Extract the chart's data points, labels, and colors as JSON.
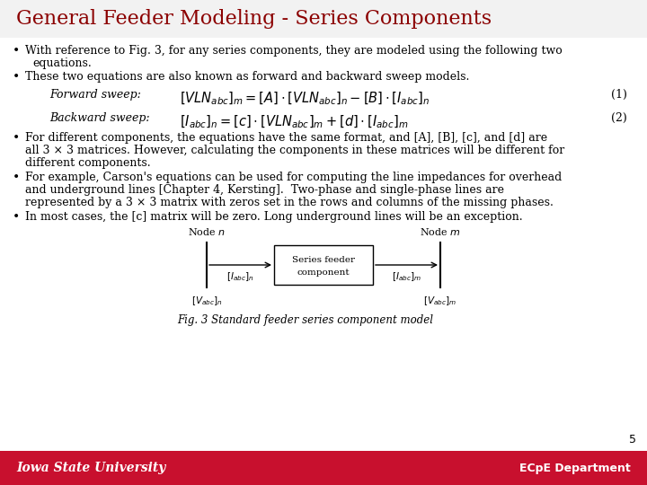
{
  "title": "General Feeder Modeling - Series Components",
  "title_color": "#8B0000",
  "title_fontsize": 16,
  "bg_color": "#FFFFFF",
  "footer_color": "#C8102E",
  "footer_text_left": "Iowa State University",
  "footer_text_right": "ECpE Department",
  "footer_page": "5",
  "bullet1": "With reference to Fig. 3, for any series components, they are modeled using the following two\n   equations.",
  "bullet2": "These two equations are also known as forward and backward sweep models.",
  "forward_label": "Forward sweep:",
  "forward_eq": "$[VLN_{abc}]_m=[A]\\cdot[VLN_{abc}]_n-[B]\\cdot[I_{abc}]_n$",
  "forward_num": "(1)",
  "backward_label": "Backward sweep:",
  "backward_eq": "$[I_{abc}]_n=[c]\\cdot[VLN_{abc}]_m+[d]\\cdot[I_{abc}]_m$",
  "backward_num": "(2)",
  "bullet3a": "For different components, the equations have the same format, and [A], [B], [c], and [d] are",
  "bullet3b": "all 3 × 3 matrices. However, calculating the components in these matrices will be different for",
  "bullet3c": "different components.",
  "bullet4a": "For example, Carson's equations can be used for computing the line impedances for overhead",
  "bullet4b": "and underground lines [Chapter 4, Kersting].  Two-phase and single-phase lines are",
  "bullet4c": "represented by a 3 × 3 matrix with zeros set in the rows and columns of the missing phases.",
  "bullet5": "In most cases, the [c] matrix will be zero. Long underground lines will be an exception.",
  "fig_caption": "Fig. 3 Standard feeder series component model",
  "text_color": "#000000",
  "text_fontsize": 9.0,
  "eq_fontsize": 10.5
}
